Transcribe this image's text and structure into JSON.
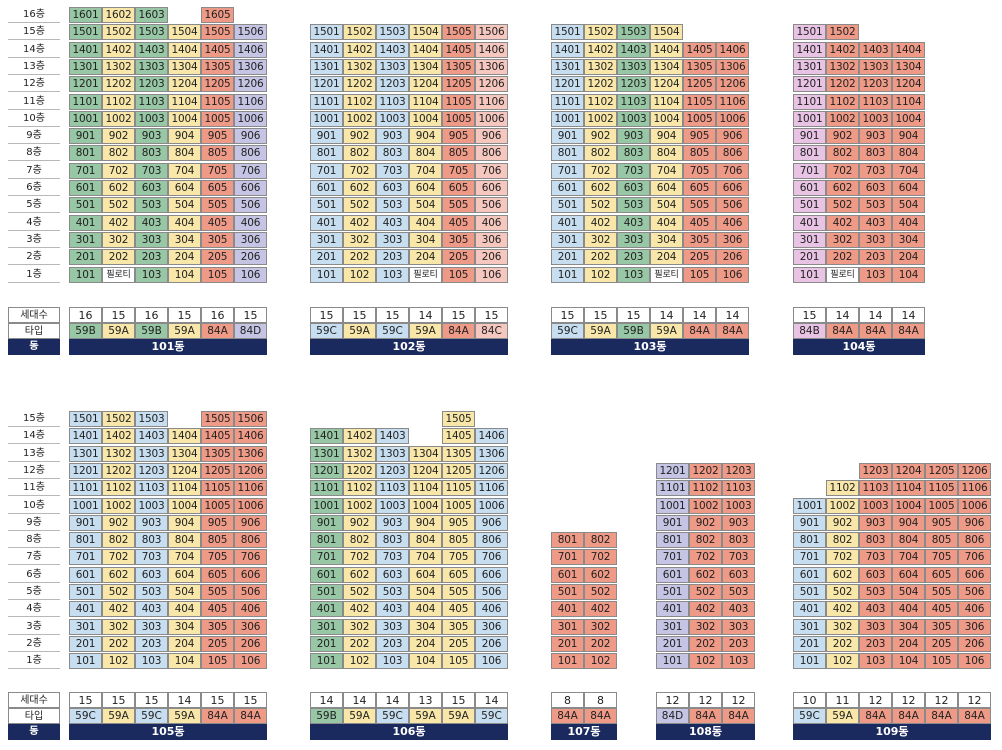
{
  "labels": {
    "count": "세대수",
    "type": "타입",
    "dong": "동",
    "piloti": "필로티"
  },
  "colors": {
    "59B": "#97c7a4",
    "59A": "#f8e7a8",
    "59C": "#c7def1",
    "84A": "#ef9a87",
    "84D": "#c6c4e4",
    "84C": "#f5c7be",
    "84B": "#e8c3e4",
    "dong_bar": "#1b2a5e"
  },
  "groups": [
    {
      "floors": [
        "16층",
        "15층",
        "14층",
        "13층",
        "12층",
        "11층",
        "10층",
        "9층",
        "8층",
        "7층",
        "6층",
        "5층",
        "4층",
        "3층",
        "2층",
        "1층"
      ],
      "floor_labels_bold": true,
      "buildings": [
        {
          "name": "101동",
          "top": 16,
          "counts": [
            "16",
            "15",
            "16",
            "15",
            "16",
            "15"
          ],
          "types": [
            "59B",
            "59A",
            "59B",
            "59A",
            "84A",
            "84D"
          ],
          "pilotis": [
            [
              0,
              1
            ]
          ]
        },
        {
          "name": "102동",
          "top": 15,
          "counts": [
            "15",
            "15",
            "15",
            "14",
            "15",
            "15"
          ],
          "types": [
            "59C",
            "59A",
            "59C",
            "59A",
            "84A",
            "84C"
          ],
          "pilotis": [
            [
              0,
              3
            ]
          ]
        },
        {
          "name": "103동",
          "top": 15,
          "counts": [
            "15",
            "15",
            "15",
            "14",
            "14",
            "14"
          ],
          "types": [
            "59C",
            "59A",
            "59B",
            "59A",
            "84A",
            "84A"
          ],
          "pilotis": [
            [
              0,
              3
            ]
          ]
        },
        {
          "name": "104동",
          "top": 14,
          "counts": [
            "15",
            "14",
            "14",
            "14"
          ],
          "types": [
            "84B",
            "84A",
            "84A",
            "84A"
          ],
          "pilotis": [
            [
              0,
              1
            ]
          ]
        }
      ]
    },
    {
      "floors": [
        "15층",
        "14층",
        "13층",
        "12층",
        "11층",
        "10층",
        "9층",
        "8층",
        "7층",
        "6층",
        "5층",
        "4층",
        "3층",
        "2층",
        "1층"
      ],
      "buildings": [
        {
          "name": "105동",
          "counts": [
            "15",
            "15",
            "15",
            "14",
            "15",
            "15"
          ],
          "types": [
            "59C",
            "59A",
            "59C",
            "59A",
            "84A",
            "84A"
          ]
        },
        {
          "name": "106동",
          "counts": [
            "14",
            "14",
            "14",
            "13",
            "15",
            "14"
          ],
          "types": [
            "59B",
            "59A",
            "59C",
            "59A",
            "59A",
            "59C"
          ]
        },
        {
          "name": "107동",
          "counts": [
            "8",
            "8"
          ],
          "types": [
            "84A",
            "84A"
          ]
        },
        {
          "name": "108동",
          "counts": [
            "12",
            "12",
            "12"
          ],
          "types": [
            "84D",
            "84A",
            "84A"
          ]
        },
        {
          "name": "109동",
          "counts": [
            "10",
            "11",
            "12",
            "12",
            "12",
            "12"
          ],
          "types": [
            "59C",
            "59A",
            "84A",
            "84A",
            "84A",
            "84A"
          ]
        }
      ]
    }
  ]
}
